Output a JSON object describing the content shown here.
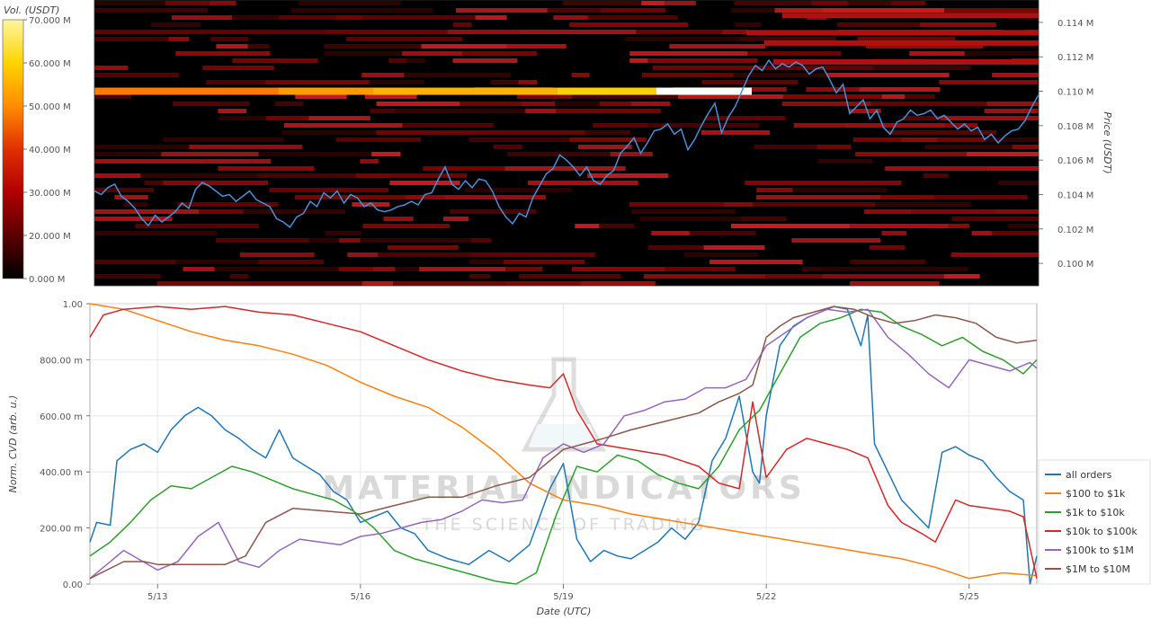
{
  "chart_data": [
    {
      "type": "heatmap",
      "colorbar": {
        "title": "Vol. (USDT)",
        "tick_labels": [
          "0.000 M",
          "20.000 M",
          "30.000 M",
          "40.000 M",
          "50.000 M",
          "60.000 M",
          "70.000 M"
        ],
        "colors": [
          "#000000",
          "#5a0000",
          "#b00000",
          "#e03000",
          "#ff8c00",
          "#ffd400",
          "#fff5a0"
        ]
      },
      "ylabel": "Price (USDT)",
      "yaxis_ticks": [
        "0.114 M",
        "0.112 M",
        "0.110 M",
        "0.108 M",
        "0.106 M",
        "0.104 M",
        "0.102 M",
        "0.100 M"
      ],
      "ylim": [
        98700,
        115300
      ],
      "y_tick_values": [
        114000,
        112000,
        110000,
        108000,
        106000,
        104000,
        102000,
        100000
      ],
      "price_line_color": "#4a90d9",
      "price_series": {
        "x": [
          0,
          0.1,
          0.2,
          0.3,
          0.4,
          0.5,
          0.6,
          0.7,
          0.8,
          0.9,
          1.0,
          1.1,
          1.2,
          1.3,
          1.4,
          1.5,
          1.6,
          1.7,
          1.8,
          1.9,
          2.0,
          2.1,
          2.2,
          2.3,
          2.4,
          2.5,
          2.6,
          2.7,
          2.8,
          2.9,
          3.0,
          3.1,
          3.2,
          3.3,
          3.4,
          3.5,
          3.6,
          3.7,
          3.8,
          3.9,
          4.0,
          4.1,
          4.2,
          4.3,
          4.4,
          4.5,
          4.6,
          4.7,
          4.8,
          4.9,
          5.0,
          5.1,
          5.2,
          5.3,
          5.4,
          5.5,
          5.6,
          5.7,
          5.8,
          5.9,
          6.0,
          6.1,
          6.2,
          6.3,
          6.4,
          6.5,
          6.6,
          6.7,
          6.8,
          6.9,
          7.0,
          7.1,
          7.2,
          7.3,
          7.4,
          7.5,
          7.6,
          7.7,
          7.8,
          7.9,
          8.0,
          8.1,
          8.2,
          8.3,
          8.4,
          8.5,
          8.6,
          8.7,
          8.8,
          8.9,
          9.0,
          9.1,
          9.2,
          9.3,
          9.4,
          9.5,
          9.6,
          9.7,
          9.8,
          9.9,
          10.0,
          10.1,
          10.2,
          10.3,
          10.4,
          10.5,
          10.6,
          10.7,
          10.8,
          10.9,
          11.0,
          11.1,
          11.2,
          11.3,
          11.4,
          11.5,
          11.6,
          11.7,
          11.8,
          11.9,
          12.0,
          12.1,
          12.2,
          12.3,
          12.4,
          12.5,
          12.6,
          12.7,
          12.8,
          12.9,
          13.0,
          13.1,
          13.2,
          13.3,
          13.4,
          13.5,
          13.6,
          13.7,
          13.8,
          13.9,
          14.0
        ],
        "y": [
          104200,
          104000,
          104400,
          104600,
          103900,
          103600,
          103200,
          102600,
          102200,
          102800,
          102400,
          102700,
          103000,
          103500,
          103200,
          104300,
          104700,
          104500,
          104200,
          103900,
          104000,
          103600,
          103900,
          104200,
          103700,
          103500,
          103300,
          102600,
          102400,
          102100,
          102700,
          102900,
          103600,
          103300,
          104100,
          103800,
          104200,
          103500,
          104000,
          103800,
          103300,
          103500,
          103100,
          103000,
          103100,
          103300,
          103400,
          103600,
          103400,
          104000,
          104100,
          104900,
          105600,
          104600,
          104300,
          104800,
          104400,
          104900,
          104800,
          104200,
          103300,
          102700,
          102300,
          102900,
          102700,
          103800,
          104500,
          105200,
          105500,
          106300,
          106000,
          105600,
          105100,
          105600,
          104800,
          104600,
          105100,
          105400,
          106400,
          106800,
          107300,
          106400,
          107000,
          107700,
          107800,
          108100,
          107500,
          107800,
          106600,
          107200,
          108000,
          108700,
          109300,
          107600,
          108500,
          109100,
          110000,
          110900,
          111500,
          111200,
          111800,
          111300,
          111600,
          111400,
          111700,
          111500,
          111000,
          111300,
          111400,
          110700,
          109900,
          110400,
          108700,
          109100,
          109500,
          108400,
          108900,
          107900,
          107500,
          108200,
          108400,
          108900,
          108600,
          108700,
          108900,
          108400,
          108600,
          108200,
          107800,
          108100,
          107700,
          107900,
          107200,
          107500,
          107000,
          107400,
          107700,
          107800,
          108300,
          109100,
          109800
        ]
      }
    },
    {
      "type": "line",
      "xlabel": "Date (UTC)",
      "ylabel": "Norm. CVD (arb. u.)",
      "x_ticks": [
        {
          "label": "5/13",
          "value": 1
        },
        {
          "label": "5/16",
          "value": 4
        },
        {
          "label": "5/19",
          "value": 7
        },
        {
          "label": "5/22",
          "value": 10
        },
        {
          "label": "5/25",
          "value": 13
        }
      ],
      "y_tick_labels": [
        "1.00",
        "800.00 m",
        "600.00 m",
        "400.00 m",
        "200.00 m",
        "0.00"
      ],
      "y_tick_values": [
        1,
        0.8,
        0.6,
        0.4,
        0.2,
        0
      ],
      "xlim": [
        0,
        14
      ],
      "ylim": [
        0,
        1
      ],
      "legend": "bottom-right",
      "series": [
        {
          "name": "all orders",
          "color": "#1f77b4",
          "x": [
            0,
            0.1,
            0.3,
            0.4,
            0.6,
            0.8,
            1.0,
            1.2,
            1.4,
            1.6,
            1.8,
            2.0,
            2.2,
            2.4,
            2.6,
            2.8,
            3.0,
            3.2,
            3.4,
            3.6,
            3.8,
            4.0,
            4.2,
            4.4,
            4.6,
            4.8,
            5.0,
            5.3,
            5.6,
            5.9,
            6.2,
            6.5,
            6.8,
            7.0,
            7.2,
            7.4,
            7.6,
            7.8,
            8.0,
            8.2,
            8.4,
            8.6,
            8.8,
            9.0,
            9.2,
            9.4,
            9.6,
            9.8,
            9.9,
            10.0,
            10.2,
            10.4,
            10.6,
            10.8,
            11.0,
            11.2,
            11.4,
            11.5,
            11.6,
            11.8,
            12.0,
            12.2,
            12.4,
            12.6,
            12.8,
            13.0,
            13.2,
            13.4,
            13.6,
            13.8,
            13.9,
            14.0
          ],
          "y": [
            0.15,
            0.22,
            0.21,
            0.44,
            0.48,
            0.5,
            0.47,
            0.55,
            0.6,
            0.63,
            0.6,
            0.55,
            0.52,
            0.48,
            0.45,
            0.55,
            0.45,
            0.42,
            0.39,
            0.33,
            0.3,
            0.22,
            0.24,
            0.26,
            0.2,
            0.18,
            0.12,
            0.09,
            0.07,
            0.12,
            0.08,
            0.14,
            0.34,
            0.43,
            0.16,
            0.08,
            0.12,
            0.1,
            0.09,
            0.12,
            0.15,
            0.2,
            0.16,
            0.22,
            0.44,
            0.52,
            0.67,
            0.4,
            0.36,
            0.6,
            0.85,
            0.92,
            0.95,
            0.97,
            0.99,
            0.98,
            0.85,
            0.96,
            0.5,
            0.4,
            0.3,
            0.25,
            0.2,
            0.47,
            0.49,
            0.46,
            0.44,
            0.38,
            0.33,
            0.3,
            0.0,
            0.1
          ]
        },
        {
          "name": "$100 to $1k",
          "color": "#ff7f0e",
          "x": [
            0,
            0.5,
            1.0,
            1.5,
            2.0,
            2.5,
            3.0,
            3.5,
            4.0,
            4.5,
            5.0,
            5.5,
            6.0,
            6.5,
            7.0,
            7.5,
            8.0,
            8.5,
            9.0,
            9.5,
            10.0,
            10.5,
            11.0,
            11.5,
            12.0,
            12.5,
            13.0,
            13.5,
            14.0
          ],
          "y": [
            1.0,
            0.98,
            0.94,
            0.9,
            0.87,
            0.85,
            0.82,
            0.78,
            0.72,
            0.67,
            0.63,
            0.56,
            0.47,
            0.36,
            0.3,
            0.28,
            0.25,
            0.23,
            0.21,
            0.19,
            0.17,
            0.15,
            0.13,
            0.11,
            0.09,
            0.06,
            0.02,
            0.04,
            0.03
          ]
        },
        {
          "name": "$1k to $10k",
          "color": "#2ca02c",
          "x": [
            0,
            0.3,
            0.6,
            0.9,
            1.2,
            1.5,
            1.8,
            2.1,
            2.4,
            2.7,
            3.0,
            3.3,
            3.6,
            3.9,
            4.2,
            4.5,
            4.8,
            5.1,
            5.4,
            5.7,
            6.0,
            6.3,
            6.6,
            6.9,
            7.2,
            7.5,
            7.8,
            8.1,
            8.4,
            8.7,
            9.0,
            9.3,
            9.6,
            9.9,
            10.2,
            10.5,
            10.8,
            11.1,
            11.4,
            11.7,
            12.0,
            12.3,
            12.6,
            12.9,
            13.2,
            13.5,
            13.8,
            14.0
          ],
          "y": [
            0.1,
            0.15,
            0.22,
            0.3,
            0.35,
            0.34,
            0.38,
            0.42,
            0.4,
            0.37,
            0.34,
            0.32,
            0.3,
            0.26,
            0.2,
            0.12,
            0.09,
            0.07,
            0.05,
            0.03,
            0.01,
            0.0,
            0.04,
            0.25,
            0.42,
            0.4,
            0.46,
            0.44,
            0.39,
            0.36,
            0.34,
            0.42,
            0.55,
            0.62,
            0.75,
            0.88,
            0.93,
            0.95,
            0.98,
            0.97,
            0.92,
            0.89,
            0.85,
            0.88,
            0.83,
            0.8,
            0.75,
            0.8
          ]
        },
        {
          "name": "$10k to $100k",
          "color": "#d62728",
          "x": [
            0,
            0.2,
            0.5,
            1.0,
            1.5,
            2.0,
            2.5,
            3.0,
            3.5,
            4.0,
            4.5,
            5.0,
            5.5,
            6.0,
            6.5,
            6.8,
            7.0,
            7.2,
            7.5,
            8.0,
            8.5,
            9.0,
            9.3,
            9.6,
            9.8,
            10.0,
            10.3,
            10.6,
            10.9,
            11.2,
            11.5,
            11.8,
            12.0,
            12.3,
            12.5,
            12.8,
            13.0,
            13.3,
            13.6,
            13.8,
            14.0
          ],
          "y": [
            0.88,
            0.96,
            0.98,
            0.99,
            0.98,
            0.99,
            0.97,
            0.96,
            0.93,
            0.9,
            0.85,
            0.8,
            0.76,
            0.73,
            0.71,
            0.7,
            0.75,
            0.62,
            0.5,
            0.48,
            0.46,
            0.42,
            0.36,
            0.34,
            0.65,
            0.38,
            0.48,
            0.52,
            0.5,
            0.48,
            0.45,
            0.28,
            0.22,
            0.18,
            0.15,
            0.3,
            0.28,
            0.27,
            0.26,
            0.24,
            0.02
          ]
        },
        {
          "name": "$100k to $1M",
          "color": "#9467bd",
          "x": [
            0,
            0.5,
            1.0,
            1.3,
            1.6,
            1.9,
            2.2,
            2.5,
            2.8,
            3.1,
            3.4,
            3.7,
            4.0,
            4.3,
            4.6,
            4.9,
            5.2,
            5.5,
            5.8,
            6.1,
            6.4,
            6.7,
            7.0,
            7.3,
            7.6,
            7.9,
            8.2,
            8.5,
            8.8,
            9.1,
            9.4,
            9.7,
            10.0,
            10.3,
            10.6,
            10.9,
            11.2,
            11.5,
            11.8,
            12.1,
            12.4,
            12.7,
            13.0,
            13.3,
            13.6,
            13.9,
            14.0
          ],
          "y": [
            0.02,
            0.12,
            0.05,
            0.08,
            0.17,
            0.22,
            0.08,
            0.06,
            0.12,
            0.16,
            0.15,
            0.14,
            0.17,
            0.18,
            0.2,
            0.22,
            0.23,
            0.26,
            0.3,
            0.29,
            0.3,
            0.45,
            0.5,
            0.47,
            0.5,
            0.6,
            0.62,
            0.65,
            0.66,
            0.7,
            0.7,
            0.73,
            0.85,
            0.9,
            0.95,
            0.98,
            0.97,
            0.98,
            0.88,
            0.82,
            0.75,
            0.7,
            0.8,
            0.78,
            0.76,
            0.79,
            0.77
          ]
        },
        {
          "name": "$1M to $10M",
          "color": "#8c564b",
          "x": [
            0,
            0.5,
            0.8,
            1.0,
            1.5,
            2.0,
            2.3,
            2.6,
            3.0,
            3.5,
            4.0,
            4.5,
            5.0,
            5.5,
            6.0,
            6.5,
            7.0,
            7.3,
            7.6,
            8.0,
            8.5,
            9.0,
            9.3,
            9.6,
            9.8,
            10.0,
            10.2,
            10.4,
            10.7,
            11.0,
            11.3,
            11.6,
            11.9,
            12.2,
            12.5,
            12.8,
            13.1,
            13.4,
            13.7,
            14.0
          ],
          "y": [
            0.02,
            0.08,
            0.08,
            0.07,
            0.07,
            0.07,
            0.1,
            0.22,
            0.27,
            0.26,
            0.25,
            0.28,
            0.31,
            0.31,
            0.35,
            0.38,
            0.48,
            0.5,
            0.52,
            0.55,
            0.58,
            0.61,
            0.65,
            0.68,
            0.71,
            0.88,
            0.92,
            0.95,
            0.97,
            0.99,
            0.98,
            0.95,
            0.93,
            0.94,
            0.96,
            0.95,
            0.93,
            0.88,
            0.86,
            0.87
          ]
        }
      ]
    }
  ],
  "watermark": {
    "main": "MATERIAL INDICATORS",
    "sub": "THE SCIENCE OF TRADING"
  }
}
